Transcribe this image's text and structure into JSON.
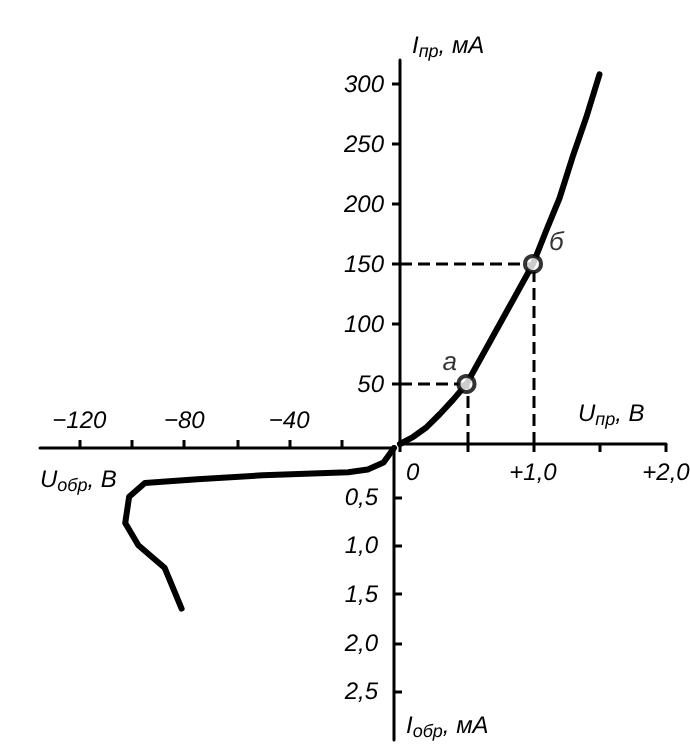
{
  "chart_data": [
    {
      "type": "line",
      "xlabel": "U$_{пр}$, В",
      "ylabel": "I$_{пр}$, мА",
      "xlim": [
        0,
        2.0
      ],
      "xticks": [
        0,
        {
          "value": 0.5,
          "label": null
        },
        {
          "value": 1.0,
          "label": "+1,0"
        },
        {
          "value": 1.5,
          "label": null
        },
        {
          "value": 2.0,
          "label": "+2,0"
        }
      ],
      "ylim": [
        0,
        320
      ],
      "yticks": [
        50,
        100,
        150,
        200,
        250,
        300
      ],
      "series": [
        {
          "color": "#000000",
          "x": [
            0,
            0.1,
            0.2,
            0.3,
            0.4,
            0.5,
            0.6,
            0.7,
            0.8,
            0.9,
            1.0,
            1.1,
            1.2,
            1.3,
            1.4,
            1.5
          ],
          "values": [
            0,
            6,
            14,
            25,
            37,
            50,
            70,
            90,
            110,
            130,
            150,
            178,
            205,
            240,
            272,
            308
          ]
        },
        {
          "type": "scatter",
          "marker": "circle",
          "color": "#000000",
          "x": [
            0.5,
            1.0
          ],
          "values": [
            50,
            150
          ]
        }
      ],
      "annotations": [
        {
          "text": "а",
          "x": 0.5,
          "y": 50
        },
        {
          "text": "б",
          "x": 1.0,
          "y": 150
        }
      ],
      "ref_lines": [
        {
          "axis": "x",
          "value": 0.5,
          "line_style": "dashed"
        },
        {
          "axis": "x",
          "value": 1.0,
          "line_style": "dashed"
        },
        {
          "axis": "y",
          "value": 50,
          "line_style": "dashed"
        },
        {
          "axis": "y",
          "value": 150,
          "line_style": "dashed"
        }
      ]
    },
    {
      "type": "line",
      "xlabel": "U$_{обр}$, В",
      "ylabel": "I$_{обр}$, мА",
      "xlim": [
        -135,
        0
      ],
      "xticks": [
        {
          "value": -120,
          "label": "−120"
        },
        {
          "value": -100,
          "label": null
        },
        {
          "value": -80,
          "label": "−80"
        },
        {
          "value": -60,
          "label": null
        },
        {
          "value": -40,
          "label": "−40"
        },
        {
          "value": -20,
          "label": null
        }
      ],
      "ylim": [
        3.0,
        0
      ],
      "yticks": [
        {
          "value": 0.5,
          "label": "0,5"
        },
        {
          "value": 1.0,
          "label": "1,0"
        },
        {
          "value": 1.5,
          "label": "1,5"
        },
        {
          "value": 2.0,
          "label": "2,0"
        },
        {
          "value": 2.5,
          "label": "2,5"
        }
      ],
      "series": [
        {
          "color": "#000000",
          "x": [
            0,
            -4,
            -10,
            -17.5,
            -50,
            -75,
            -95,
            -101,
            -102.5,
            -97.5,
            -87.5,
            -81
          ],
          "values": [
            0,
            0.15,
            0.22,
            0.25,
            0.28,
            0.32,
            0.36,
            0.5,
            0.77,
            1.0,
            1.23,
            1.65
          ]
        }
      ]
    }
  ]
}
